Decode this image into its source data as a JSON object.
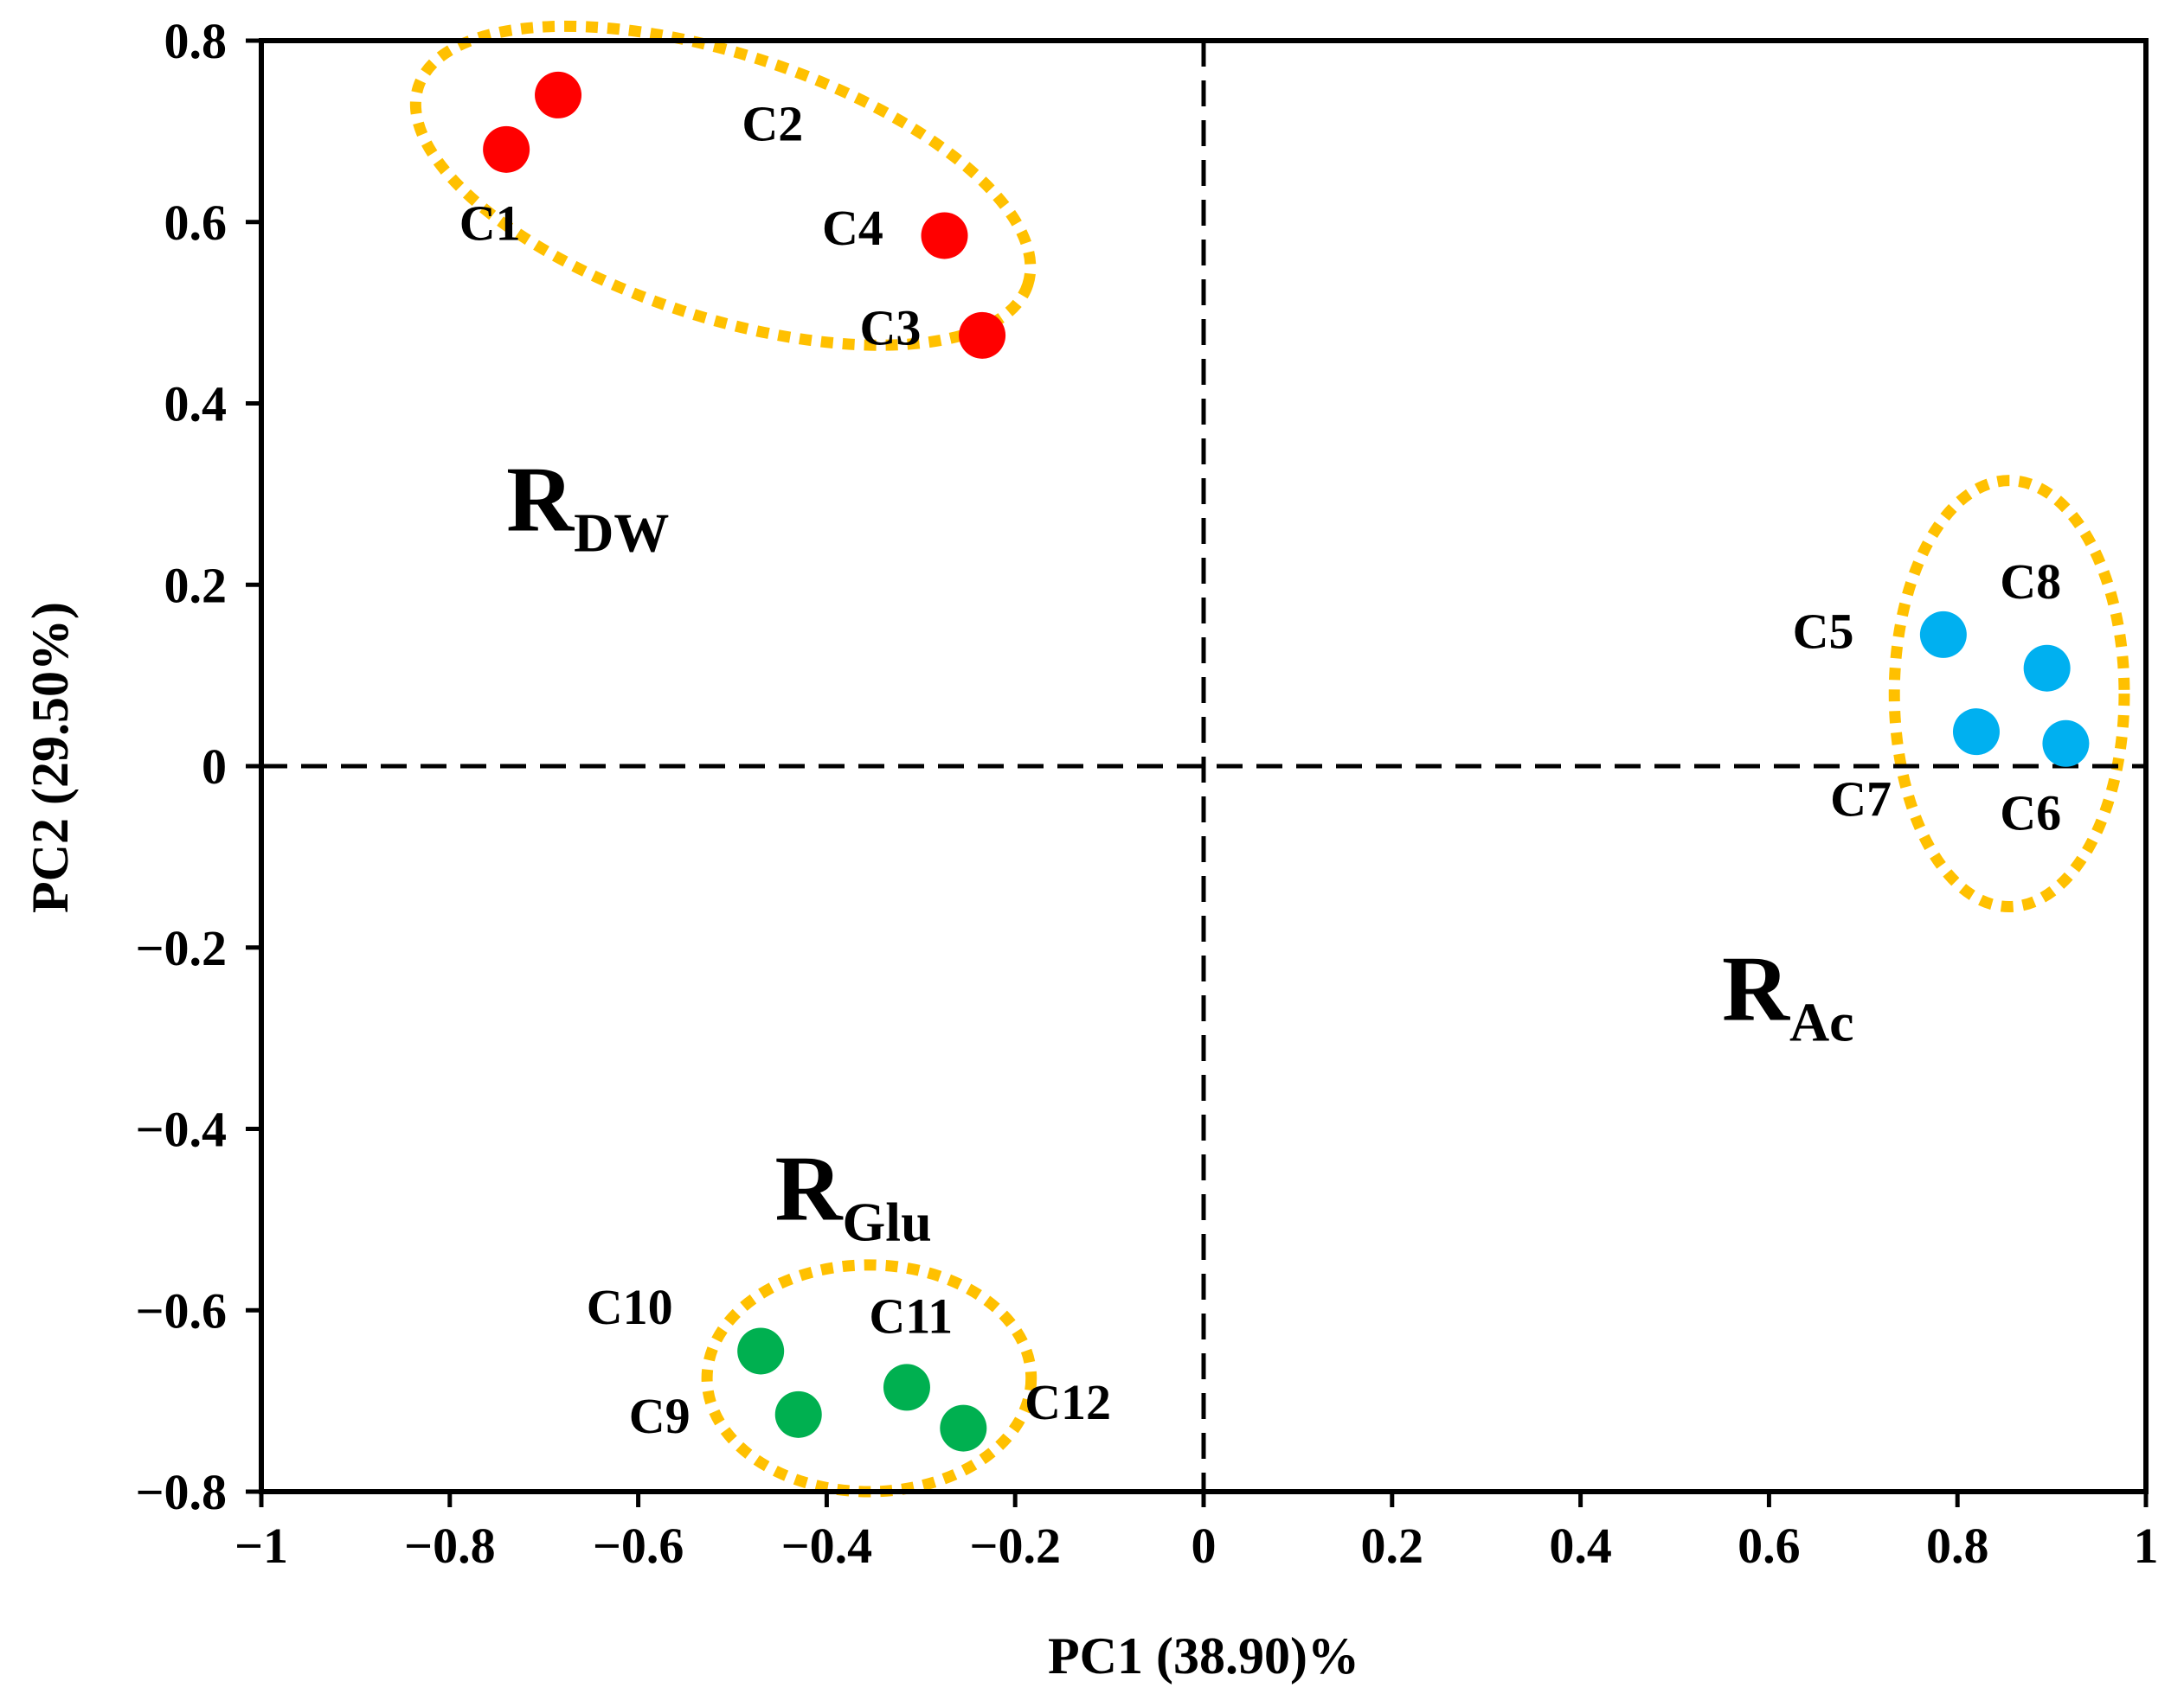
{
  "chart_data": {
    "type": "scatter",
    "xlabel": "PC1 (38.90)%",
    "ylabel": "PC2 (29.50%)",
    "xlim": [
      -1,
      1
    ],
    "ylim": [
      -0.8,
      0.8
    ],
    "xticks": [
      "−1",
      "−0.8",
      "−0.6",
      "−0.4",
      "−0.2",
      "0",
      "0.2",
      "0.4",
      "0.6",
      "0.8",
      "1"
    ],
    "yticks": [
      "−0.8",
      "−0.6",
      "−0.4",
      "−0.2",
      "0",
      "0.2",
      "0.4",
      "0.6",
      "0.8"
    ],
    "grid": false,
    "reference_lines": [
      "x = 0 (dashed)",
      "y = 0 (dashed)"
    ],
    "groups": [
      {
        "label_main": "R",
        "label_sub": "DW",
        "color": "#ff0000",
        "label_pos": [
          -0.74,
          0.26
        ],
        "ellipse": {
          "cx": -0.51,
          "cy": 0.64,
          "rx": 0.34,
          "ry": 0.145,
          "angle_deg": 18
        },
        "points": [
          {
            "label": "C1",
            "x": -0.74,
            "y": 0.68,
            "label_pos": [
              -0.79,
              0.58
            ]
          },
          {
            "label": "C2",
            "x": -0.685,
            "y": 0.74,
            "label_pos": [
              -0.49,
              0.69
            ]
          },
          {
            "label": "C3",
            "x": -0.235,
            "y": 0.475,
            "label_pos": [
              -0.365,
              0.465
            ]
          },
          {
            "label": "C4",
            "x": -0.275,
            "y": 0.585,
            "label_pos": [
              -0.405,
              0.575
            ]
          }
        ]
      },
      {
        "label_main": "R",
        "label_sub": "Ac",
        "color": "#00b0f0",
        "label_pos": [
          0.55,
          -0.28
        ],
        "ellipse": {
          "cx": 0.855,
          "cy": 0.08,
          "rx": 0.122,
          "ry": 0.235,
          "angle_deg": 0
        },
        "points": [
          {
            "label": "C5",
            "x": 0.785,
            "y": 0.145,
            "label_pos": [
              0.625,
              0.13
            ]
          },
          {
            "label": "C6",
            "x": 0.915,
            "y": 0.025,
            "label_pos": [
              0.845,
              -0.07
            ]
          },
          {
            "label": "C7",
            "x": 0.82,
            "y": 0.038,
            "label_pos": [
              0.665,
              -0.055
            ]
          },
          {
            "label": "C8",
            "x": 0.895,
            "y": 0.108,
            "label_pos": [
              0.845,
              0.185
            ]
          }
        ]
      },
      {
        "label_main": "R",
        "label_sub": "Glu",
        "color": "#00b050",
        "label_pos": [
          -0.455,
          -0.5
        ],
        "ellipse": {
          "cx": -0.355,
          "cy": -0.675,
          "rx": 0.172,
          "ry": 0.125,
          "angle_deg": 0
        },
        "points": [
          {
            "label": "C9",
            "x": -0.43,
            "y": -0.715,
            "label_pos": [
              -0.61,
              -0.735
            ]
          },
          {
            "label": "C10",
            "x": -0.47,
            "y": -0.645,
            "label_pos": [
              -0.655,
              -0.615
            ]
          },
          {
            "label": "C11",
            "x": -0.315,
            "y": -0.685,
            "label_pos": [
              -0.355,
              -0.625
            ]
          },
          {
            "label": "C12",
            "x": -0.255,
            "y": -0.73,
            "label_pos": [
              -0.19,
              -0.72
            ]
          }
        ]
      }
    ]
  }
}
